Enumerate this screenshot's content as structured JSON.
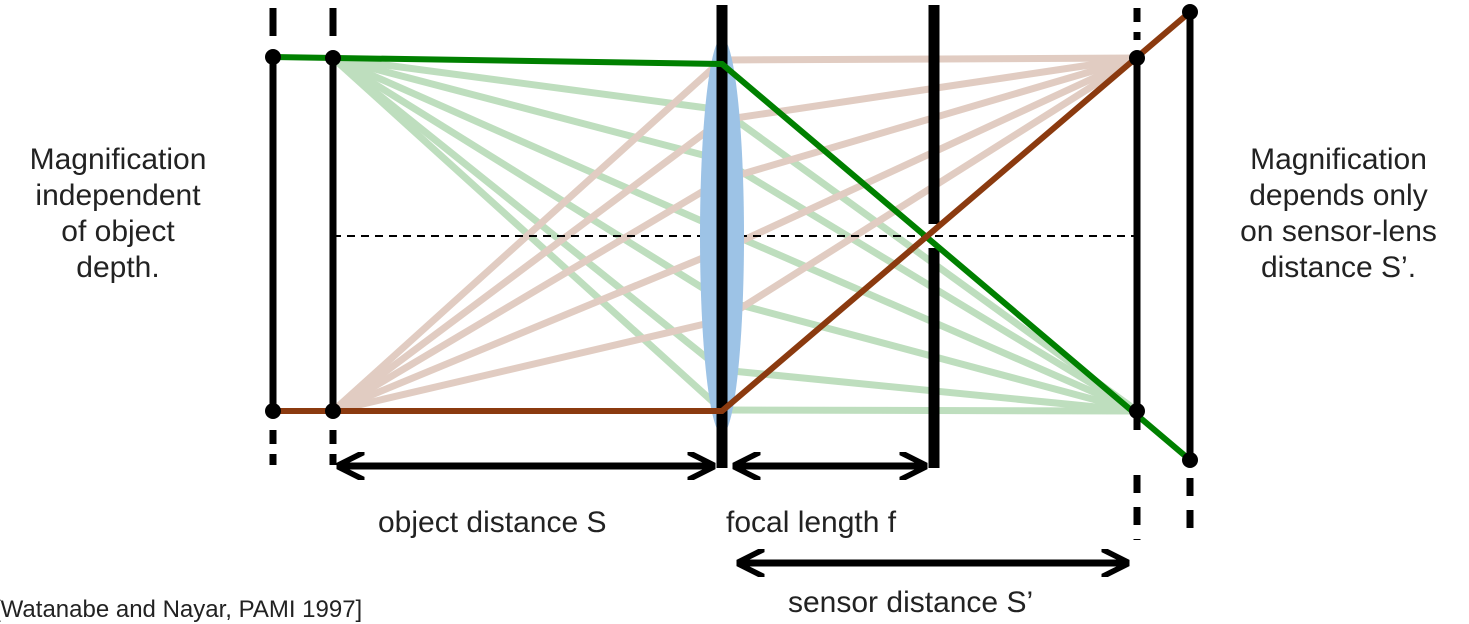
{
  "left_caption": [
    "Magnification",
    "independent",
    "of object",
    "depth."
  ],
  "right_caption": [
    "Magnification",
    "depends only",
    "on sensor-lens",
    "distance S’."
  ],
  "labels": {
    "object_distance": "object distance S",
    "focal_length": "focal length f",
    "sensor_distance": "sensor distance S’"
  },
  "citation": "[Watanabe and Nayar, PAMI 1997]",
  "colors": {
    "green_ray": "#008000",
    "brown_ray": "#8B3A0F",
    "lens": "#9DC3E6",
    "planes": "#000000"
  }
}
